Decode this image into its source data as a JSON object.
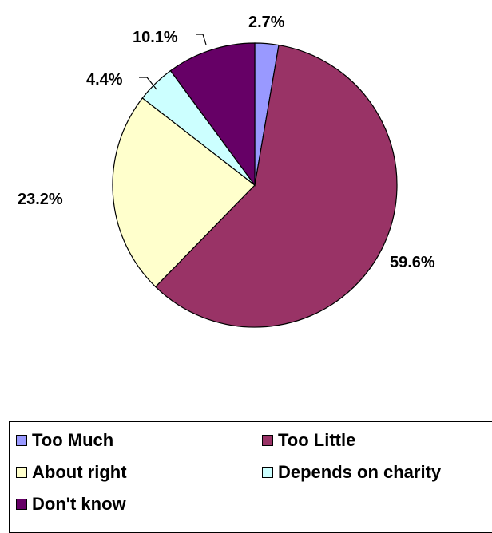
{
  "chart_data": {
    "type": "pie",
    "categories": [
      "Too Much",
      "Too Little",
      "About right",
      "Depends on charity",
      "Don't know"
    ],
    "values": [
      2.7,
      59.6,
      23.2,
      4.4,
      10.1
    ],
    "labels": [
      "2.7%",
      "59.6%",
      "23.2%",
      "4.4%",
      "10.1%"
    ],
    "colors": [
      "#9999ff",
      "#993366",
      "#ffffcc",
      "#ccffff",
      "#660066"
    ],
    "start_angle": "12 o'clock",
    "direction": "clockwise",
    "legend": "bottom"
  }
}
